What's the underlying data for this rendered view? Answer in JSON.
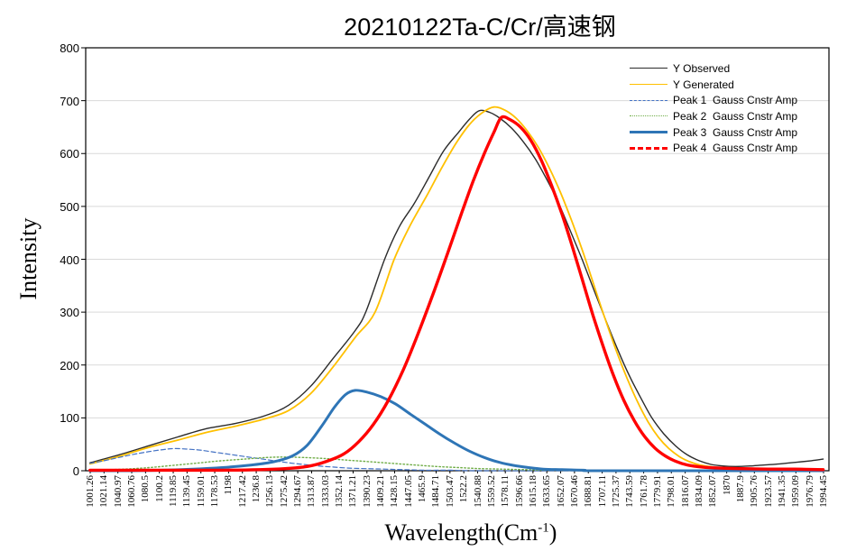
{
  "chart_data": {
    "type": "line",
    "title": "20210122Ta-C/Cr/高速钢",
    "ylabel": "Intensity",
    "xlabel_parts": {
      "pre": "Wavelength(Cm",
      "sup": "-1",
      "post": ")"
    },
    "ylim": [
      0,
      800
    ],
    "y_step": 100,
    "x_min": 1001.26,
    "x_max": 1994.45,
    "grid": "horizontal",
    "legend_position": "top-right-inside",
    "colors": {
      "grid": "#D9D9D9",
      "axis": "#000000",
      "background": "#FFFFFF"
    },
    "x_ticks": [
      "1001.26",
      "1021.14",
      "1040.97",
      "1060.76",
      "1080.5",
      "1100.2",
      "1119.85",
      "1139.45",
      "1159.01",
      "1178.53",
      "1198",
      "1217.42",
      "1236.8",
      "1256.13",
      "1275.42",
      "1294.67",
      "1313.87",
      "1333.03",
      "1352.14",
      "1371.21",
      "1390.23",
      "1409.21",
      "1428.15",
      "1447.05",
      "1465.9",
      "1484.71",
      "1503.47",
      "1522.2",
      "1540.88",
      "1559.52",
      "1578.11",
      "1596.66",
      "1615.18",
      "1633.65",
      "1652.07",
      "1670.46",
      "1688.81",
      "1707.11",
      "1725.37",
      "1743.59",
      "1761.78",
      "1779.91",
      "1798.01",
      "1816.07",
      "1834.09",
      "1852.07",
      "1870",
      "1887.9",
      "1905.76",
      "1923.57",
      "1941.35",
      "1959.09",
      "1976.79",
      "1994.45"
    ],
    "series": [
      {
        "id": "observed",
        "name": "Y Observed",
        "color": "#2B2B2B",
        "width": 1.4,
        "dash": "",
        "legend_style": "solid",
        "points": [
          [
            1001,
            15
          ],
          [
            1040,
            30
          ],
          [
            1080,
            47
          ],
          [
            1120,
            64
          ],
          [
            1160,
            80
          ],
          [
            1200,
            90
          ],
          [
            1240,
            105
          ],
          [
            1270,
            124
          ],
          [
            1300,
            160
          ],
          [
            1330,
            212
          ],
          [
            1360,
            265
          ],
          [
            1375,
            302
          ],
          [
            1400,
            400
          ],
          [
            1420,
            462
          ],
          [
            1440,
            505
          ],
          [
            1460,
            555
          ],
          [
            1480,
            605
          ],
          [
            1500,
            640
          ],
          [
            1515,
            665
          ],
          [
            1528,
            681
          ],
          [
            1542,
            678
          ],
          [
            1556,
            667
          ],
          [
            1572,
            648
          ],
          [
            1588,
            622
          ],
          [
            1604,
            590
          ],
          [
            1620,
            550
          ],
          [
            1636,
            505
          ],
          [
            1652,
            452
          ],
          [
            1668,
            398
          ],
          [
            1684,
            340
          ],
          [
            1700,
            283
          ],
          [
            1716,
            228
          ],
          [
            1732,
            178
          ],
          [
            1748,
            135
          ],
          [
            1762,
            100
          ],
          [
            1778,
            70
          ],
          [
            1794,
            47
          ],
          [
            1810,
            30
          ],
          [
            1826,
            19
          ],
          [
            1842,
            12
          ],
          [
            1858,
            9
          ],
          [
            1875,
            8
          ],
          [
            1895,
            9
          ],
          [
            1915,
            11
          ],
          [
            1935,
            13
          ],
          [
            1958,
            16
          ],
          [
            1978,
            19
          ],
          [
            1994,
            22
          ]
        ]
      },
      {
        "id": "generated",
        "name": "Y Generated",
        "color": "#FFC000",
        "width": 1.8,
        "dash": "",
        "legend_style": "solid",
        "points": [
          [
            1001,
            13
          ],
          [
            1040,
            27
          ],
          [
            1080,
            44
          ],
          [
            1120,
            58
          ],
          [
            1160,
            73
          ],
          [
            1200,
            85
          ],
          [
            1240,
            99
          ],
          [
            1270,
            114
          ],
          [
            1300,
            146
          ],
          [
            1330,
            196
          ],
          [
            1360,
            252
          ],
          [
            1387,
            300
          ],
          [
            1413,
            400
          ],
          [
            1435,
            465
          ],
          [
            1457,
            520
          ],
          [
            1477,
            572
          ],
          [
            1497,
            620
          ],
          [
            1515,
            655
          ],
          [
            1532,
            677
          ],
          [
            1548,
            688
          ],
          [
            1563,
            682
          ],
          [
            1578,
            667
          ],
          [
            1593,
            643
          ],
          [
            1608,
            612
          ],
          [
            1623,
            573
          ],
          [
            1638,
            527
          ],
          [
            1653,
            474
          ],
          [
            1668,
            416
          ],
          [
            1683,
            353
          ],
          [
            1698,
            290
          ],
          [
            1713,
            230
          ],
          [
            1728,
            176
          ],
          [
            1743,
            129
          ],
          [
            1757,
            92
          ],
          [
            1771,
            63
          ],
          [
            1785,
            42
          ],
          [
            1799,
            27
          ],
          [
            1813,
            17
          ],
          [
            1827,
            11
          ],
          [
            1845,
            7
          ],
          [
            1865,
            5
          ],
          [
            1890,
            4
          ],
          [
            1920,
            3
          ],
          [
            1955,
            3
          ],
          [
            1994,
            3
          ]
        ]
      },
      {
        "id": "peak1",
        "name": "Peak 1  Gauss Cnstr Amp",
        "color": "#4472C4",
        "width": 1.2,
        "dash": "5,3",
        "legend_style": "dashed",
        "points": [
          [
            1001,
            14
          ],
          [
            1020,
            19
          ],
          [
            1040,
            25
          ],
          [
            1060,
            31
          ],
          [
            1080,
            36
          ],
          [
            1100,
            40
          ],
          [
            1115,
            42
          ],
          [
            1132,
            41
          ],
          [
            1150,
            39
          ],
          [
            1170,
            35
          ],
          [
            1190,
            31
          ],
          [
            1210,
            27
          ],
          [
            1230,
            23
          ],
          [
            1250,
            19
          ],
          [
            1270,
            15
          ],
          [
            1290,
            12
          ],
          [
            1310,
            9
          ],
          [
            1330,
            7
          ],
          [
            1352,
            5
          ],
          [
            1375,
            4
          ],
          [
            1400,
            3
          ],
          [
            1425,
            2
          ],
          [
            1455,
            1
          ],
          [
            1490,
            1
          ],
          [
            1530,
            0
          ],
          [
            1700,
            0
          ],
          [
            1994,
            0
          ]
        ]
      },
      {
        "id": "peak2",
        "name": "Peak 2  Gauss Cnstr Amp",
        "color": "#70AD47",
        "width": 1.4,
        "dash": "1.5,2.5",
        "legend_style": "dotted",
        "points": [
          [
            1001,
            1
          ],
          [
            1030,
            2
          ],
          [
            1060,
            4
          ],
          [
            1090,
            7
          ],
          [
            1120,
            11
          ],
          [
            1150,
            15
          ],
          [
            1180,
            19
          ],
          [
            1210,
            22
          ],
          [
            1240,
            25
          ],
          [
            1265,
            26
          ],
          [
            1290,
            25
          ],
          [
            1320,
            23
          ],
          [
            1350,
            20
          ],
          [
            1380,
            17
          ],
          [
            1410,
            14
          ],
          [
            1440,
            11
          ],
          [
            1470,
            8
          ],
          [
            1500,
            6
          ],
          [
            1530,
            4
          ],
          [
            1560,
            3
          ],
          [
            1590,
            2
          ],
          [
            1620,
            1
          ],
          [
            1660,
            1
          ],
          [
            1700,
            0
          ],
          [
            1994,
            0
          ]
        ]
      },
      {
        "id": "peak3",
        "name": "Peak 3  Gauss Cnstr Amp",
        "color": "#2E75B6",
        "width": 3,
        "dash": "",
        "legend_style": "solid",
        "points": [
          [
            1001,
            0
          ],
          [
            1060,
            0
          ],
          [
            1100,
            1
          ],
          [
            1140,
            3
          ],
          [
            1180,
            6
          ],
          [
            1220,
            11
          ],
          [
            1250,
            17
          ],
          [
            1275,
            28
          ],
          [
            1295,
            48
          ],
          [
            1315,
            85
          ],
          [
            1332,
            120
          ],
          [
            1347,
            144
          ],
          [
            1360,
            152
          ],
          [
            1375,
            149
          ],
          [
            1395,
            140
          ],
          [
            1415,
            126
          ],
          [
            1435,
            107
          ],
          [
            1455,
            88
          ],
          [
            1475,
            69
          ],
          [
            1495,
            52
          ],
          [
            1515,
            37
          ],
          [
            1535,
            25
          ],
          [
            1555,
            16
          ],
          [
            1575,
            10
          ],
          [
            1595,
            6
          ],
          [
            1615,
            3
          ],
          [
            1640,
            2
          ],
          [
            1670,
            1
          ],
          [
            1700,
            0
          ],
          [
            1994,
            0
          ]
        ]
      },
      {
        "id": "peak4",
        "name": "Peak 4  Gauss Cnstr Amp",
        "color": "#FF0000",
        "width": 3.4,
        "dash": "",
        "legend_style": "dashed",
        "points": [
          [
            1001,
            1
          ],
          [
            1120,
            1
          ],
          [
            1180,
            1
          ],
          [
            1230,
            2
          ],
          [
            1265,
            4
          ],
          [
            1295,
            8
          ],
          [
            1320,
            17
          ],
          [
            1345,
            32
          ],
          [
            1365,
            55
          ],
          [
            1385,
            88
          ],
          [
            1405,
            133
          ],
          [
            1425,
            190
          ],
          [
            1445,
            258
          ],
          [
            1465,
            332
          ],
          [
            1485,
            410
          ],
          [
            1505,
            490
          ],
          [
            1520,
            548
          ],
          [
            1535,
            600
          ],
          [
            1548,
            640
          ],
          [
            1558,
            668
          ],
          [
            1570,
            664
          ],
          [
            1584,
            650
          ],
          [
            1598,
            625
          ],
          [
            1612,
            588
          ],
          [
            1626,
            540
          ],
          [
            1640,
            486
          ],
          [
            1654,
            425
          ],
          [
            1668,
            360
          ],
          [
            1682,
            295
          ],
          [
            1696,
            235
          ],
          [
            1710,
            180
          ],
          [
            1724,
            133
          ],
          [
            1738,
            95
          ],
          [
            1752,
            65
          ],
          [
            1766,
            43
          ],
          [
            1780,
            28
          ],
          [
            1794,
            18
          ],
          [
            1810,
            11
          ],
          [
            1830,
            7
          ],
          [
            1855,
            5
          ],
          [
            1885,
            4
          ],
          [
            1920,
            3
          ],
          [
            1955,
            3
          ],
          [
            1994,
            2
          ]
        ]
      }
    ]
  }
}
